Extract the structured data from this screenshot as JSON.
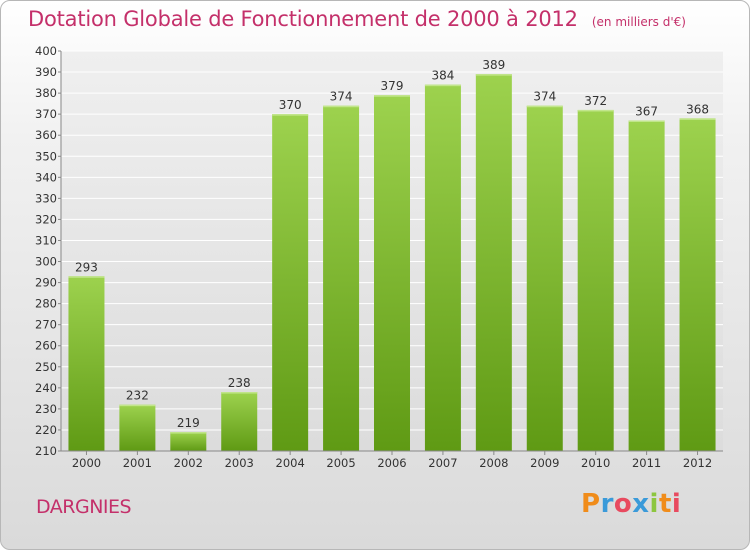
{
  "title": "Dotation Globale de Fonctionnement de 2000 à 2012",
  "unit_note": "(en milliers d'€)",
  "commune": "DARGNIES",
  "logo_text": "Proxiti",
  "colors": {
    "title": "#c4306a",
    "bar_light": "#9dd24e",
    "bar_dark": "#5f9a14",
    "grid": "#ffffff"
  },
  "chart_data": {
    "type": "bar",
    "title": "Dotation Globale de Fonctionnement de 2000 à 2012",
    "xlabel": "",
    "ylabel": "",
    "categories": [
      "2000",
      "2001",
      "2002",
      "2003",
      "2004",
      "2005",
      "2006",
      "2007",
      "2008",
      "2009",
      "2010",
      "2011",
      "2012"
    ],
    "values": [
      293,
      232,
      219,
      238,
      370,
      374,
      379,
      384,
      389,
      374,
      372,
      367,
      368
    ],
    "ylim": [
      210,
      400
    ],
    "ytick_step": 10,
    "grid": true,
    "data_labels": true
  }
}
